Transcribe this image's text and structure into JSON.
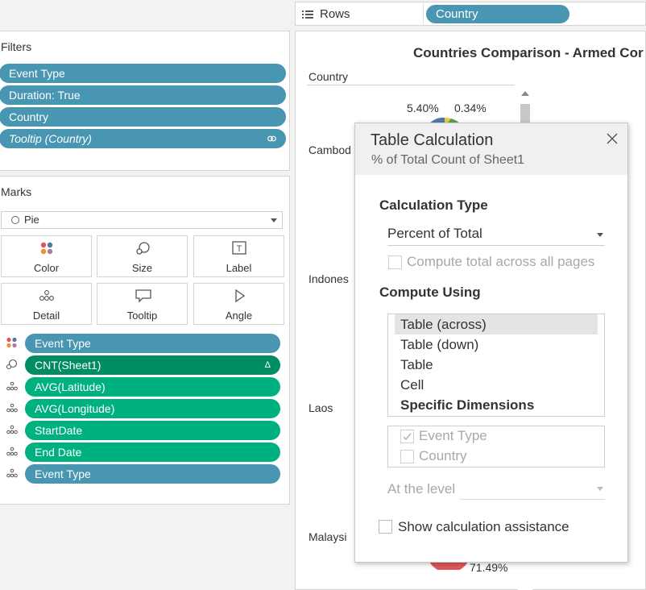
{
  "rows_shelf": {
    "label": "Rows",
    "pill": "Country"
  },
  "filters": {
    "title": "Filters",
    "pills": [
      "Event Type",
      "Duration: True",
      "Country",
      "Tooltip (Country)"
    ]
  },
  "marks": {
    "title": "Marks",
    "mark_type": "Pie",
    "buttons": [
      "Color",
      "Size",
      "Label",
      "Detail",
      "Tooltip",
      "Angle"
    ],
    "fields": [
      "Event Type",
      "CNT(Sheet1)",
      "AVG(Latitude)",
      "AVG(Longitude)",
      "StartDate",
      "End Date",
      "Event Type"
    ],
    "delta_symbol": "Δ"
  },
  "view": {
    "title": "Countries Comparison - Armed Cor",
    "column_header": "Country",
    "rows": [
      "Cambod",
      "Indones",
      "Laos",
      "Malaysi"
    ],
    "labels": {
      "top_left": "5.40%",
      "top_right": "0.34%",
      "bottom": "71.49%"
    }
  },
  "dialog": {
    "title": "Table Calculation",
    "subtitle": "% of Total Count of Sheet1",
    "calc_type_heading": "Calculation Type",
    "calc_type_value": "Percent of Total",
    "compute_across_pages": "Compute total across all pages",
    "compute_using_heading": "Compute Using",
    "compute_options": [
      "Table (across)",
      "Table (down)",
      "Table",
      "Cell",
      "Specific Dimensions"
    ],
    "dimensions": [
      "Event Type",
      "Country"
    ],
    "at_level_label": "At the level",
    "show_assistance": "Show calculation assistance"
  },
  "colors": {
    "blue_pill": "#4996b2",
    "green_pill": "#00b180",
    "dark_green_pill": "#008d63",
    "pie_red": "#e15759"
  }
}
